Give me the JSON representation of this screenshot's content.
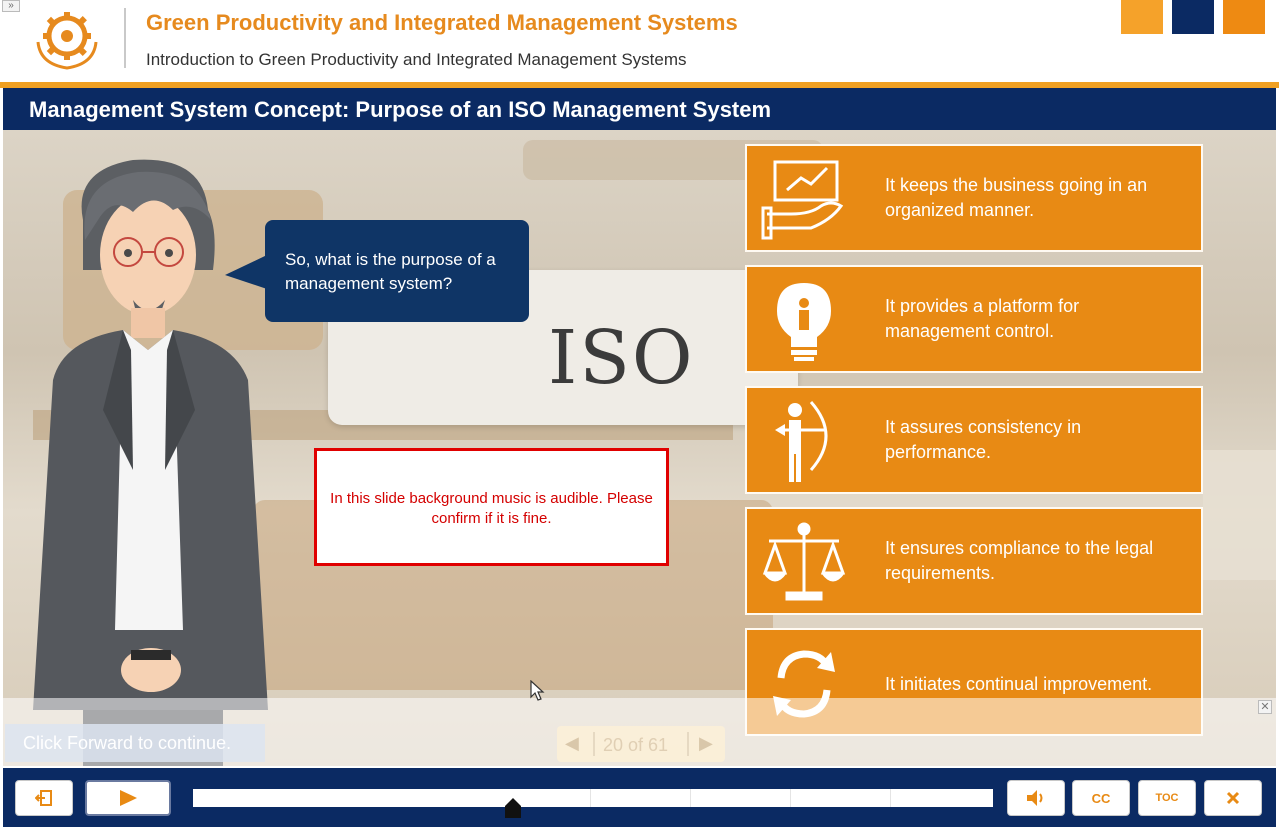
{
  "header": {
    "collapse_glyph": "»",
    "logo_icon": "apo-gear-logo-icon",
    "course_title": "Green Productivity and Integrated Management Systems",
    "course_subtitle": "Introduction to Green Productivity and Integrated Management Systems",
    "brand_squares": [
      "#f5a22a",
      "#0b2a63",
      "#ee8a12"
    ]
  },
  "slide": {
    "title": "Management System Concept: Purpose of an ISO Management System",
    "background_label": "ISO",
    "speech_bubble": "So, what is the purpose of a management system?",
    "review_note": "In this slide background music is audible. Please confirm if it is fine.",
    "cards": [
      {
        "icon": "hand-presentation-icon",
        "text": "It keeps the business going in an organized manner."
      },
      {
        "icon": "lightbulb-person-icon",
        "text": "It provides a platform for management control."
      },
      {
        "icon": "archer-icon",
        "text": "It assures consistency in performance."
      },
      {
        "icon": "scales-icon",
        "text": "It ensures compliance to the legal requirements."
      },
      {
        "icon": "cycle-arrows-icon",
        "text": "It initiates continual improvement."
      }
    ],
    "hint": "Click Forward to continue.",
    "pager": {
      "label": "20 of 61",
      "prev_glyph": "◀",
      "next_glyph": "▶"
    },
    "close_glyph": "✕"
  },
  "controls": {
    "exit_icon": "exit-icon",
    "play_icon": "play-icon",
    "volume_icon": "volume-icon",
    "cc_label": "CC",
    "toc_label": "TOC",
    "close_icon": "close-icon",
    "accent": "#e88a14",
    "bar_color": "#0b2a63",
    "seek_progress": 0.4
  }
}
